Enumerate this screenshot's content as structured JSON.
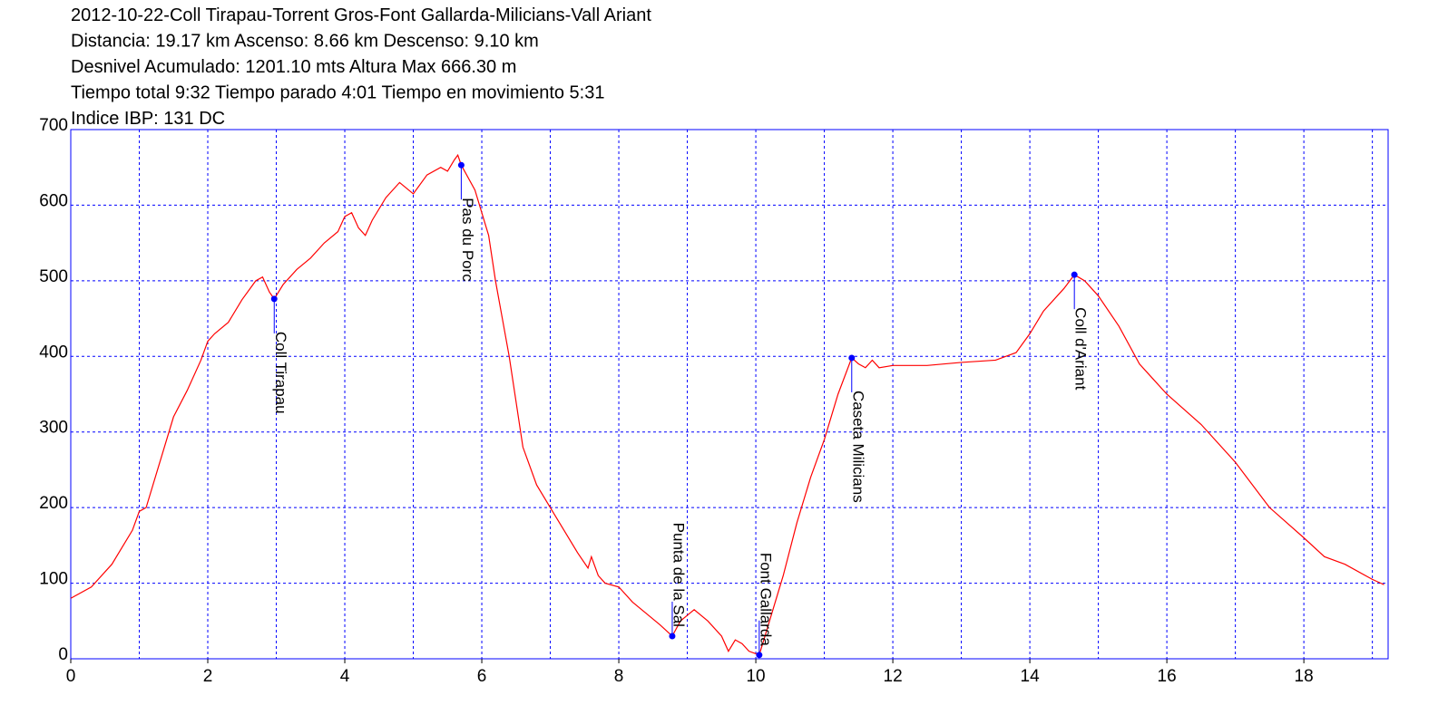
{
  "chart_data": {
    "type": "line",
    "title_lines": [
      "2012-10-22-Coll Tirapau-Torrent Gros-Font Gallarda-Milicians-Vall Ariant",
      "Distancia: 19.17 km Ascenso: 8.66 km Descenso: 9.10 km",
      "Desnivel Acumulado: 1201.10 mts  Altura Max 666.30 m",
      "Tiempo total 9:32 Tiempo parado 4:01 Tiempo en movimiento 5:31",
      "Indice IBP: 131 DC"
    ],
    "x": [
      0,
      0.3,
      0.6,
      0.9,
      1.0,
      1.1,
      1.3,
      1.5,
      1.7,
      1.9,
      2.0,
      2.1,
      2.3,
      2.5,
      2.7,
      2.8,
      2.9,
      2.97,
      3.1,
      3.3,
      3.5,
      3.7,
      3.9,
      4.0,
      4.1,
      4.2,
      4.3,
      4.4,
      4.6,
      4.8,
      5.0,
      5.2,
      5.4,
      5.5,
      5.6,
      5.65,
      5.7,
      5.9,
      6.1,
      6.2,
      6.3,
      6.4,
      6.5,
      6.6,
      6.8,
      7.0,
      7.2,
      7.4,
      7.55,
      7.6,
      7.7,
      7.8,
      8.0,
      8.2,
      8.4,
      8.6,
      8.78,
      8.9,
      9.1,
      9.3,
      9.5,
      9.6,
      9.7,
      9.8,
      9.9,
      10.05,
      10.2,
      10.4,
      10.6,
      10.8,
      11.0,
      11.2,
      11.4,
      11.5,
      11.6,
      11.7,
      11.8,
      12.0,
      12.5,
      13.0,
      13.5,
      13.8,
      14.0,
      14.2,
      14.5,
      14.65,
      14.8,
      15.0,
      15.3,
      15.6,
      16.0,
      16.5,
      17.0,
      17.5,
      18.0,
      18.3,
      18.6,
      19.0,
      19.17
    ],
    "values": [
      80,
      95,
      125,
      170,
      195,
      200,
      260,
      320,
      355,
      395,
      420,
      430,
      445,
      475,
      500,
      505,
      485,
      476,
      495,
      515,
      530,
      550,
      565,
      585,
      590,
      570,
      560,
      580,
      610,
      630,
      615,
      640,
      650,
      645,
      660,
      666.3,
      653,
      620,
      560,
      500,
      450,
      400,
      340,
      280,
      230,
      200,
      170,
      140,
      120,
      135,
      110,
      100,
      95,
      75,
      60,
      45,
      30,
      50,
      65,
      50,
      30,
      10,
      25,
      20,
      10,
      5,
      50,
      110,
      180,
      240,
      290,
      350,
      398,
      390,
      385,
      395,
      385,
      388,
      388,
      392,
      395,
      405,
      430,
      460,
      490,
      508,
      500,
      480,
      440,
      390,
      350,
      310,
      260,
      200,
      160,
      135,
      125,
      105,
      98
    ],
    "color": "#ff0000",
    "waypoints": [
      {
        "label": "Coll Tirapau",
        "x": 2.97,
        "y": 476
      },
      {
        "label": "Pas du Porc",
        "x": 5.7,
        "y": 653
      },
      {
        "label": "Punta de la Sal",
        "x": 8.78,
        "y": 30
      },
      {
        "label": "Font Gallarda",
        "x": 10.05,
        "y": 5
      },
      {
        "label": "Caseta Milicians",
        "x": 11.4,
        "y": 398
      },
      {
        "label": "Coll d'Ariant",
        "x": 14.65,
        "y": 508
      }
    ],
    "waypoint_color": "#0000ff",
    "xlim": [
      0,
      19.23
    ],
    "ylim": [
      0,
      700
    ],
    "xticks": [
      0,
      2,
      4,
      6,
      8,
      10,
      12,
      14,
      16,
      18
    ],
    "xgrid": [
      1,
      2,
      3,
      4,
      5,
      6,
      7,
      8,
      9,
      10,
      11,
      12,
      13,
      14,
      15,
      16,
      17,
      18,
      19
    ],
    "yticks": [
      0,
      100,
      200,
      300,
      400,
      500,
      600,
      700
    ],
    "grid": true,
    "grid_color": "#0000ff"
  }
}
